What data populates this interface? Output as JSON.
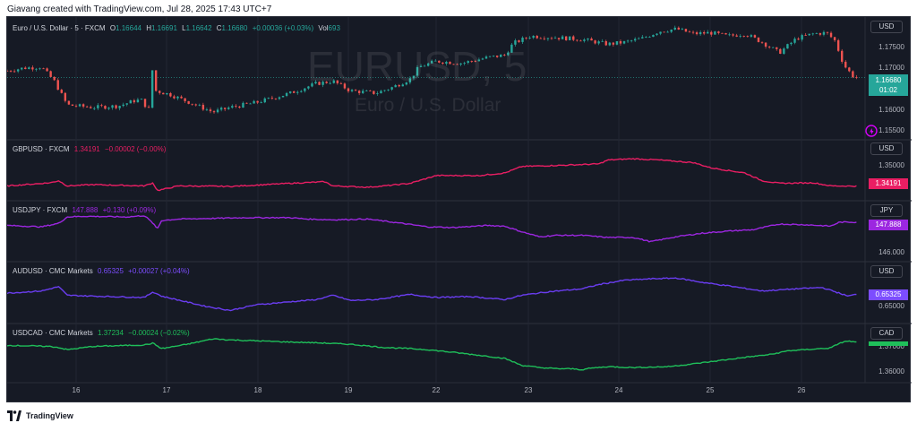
{
  "header": {
    "caption": "Giavang created with TradingView.com, Jul 28, 2025 17:43 UTC+7"
  },
  "footer": {
    "brand": "TradingView"
  },
  "main_pane": {
    "symbol": "Euro / U.S. Dollar · 5 · FXCM",
    "O_label": "O",
    "O": "1.16644",
    "H_label": "H",
    "H": "1.16691",
    "L_label": "L",
    "L": "1.16642",
    "C_label": "C",
    "C": "1.16680",
    "change": "+0.00036 (+0.03%)",
    "vol_label": "Vol",
    "vol": "693",
    "watermark": "EURUSD, 5",
    "watermark_sub": "Euro / U.S. Dollar",
    "currency": "USD",
    "last_price": "1.16680",
    "countdown": "01:02",
    "ticks": [
      "1.17500",
      "1.17000",
      "1.16500",
      "1.16000",
      "1.15500"
    ]
  },
  "sub_panes": [
    {
      "symbol": "GBPUSD · FXCM",
      "last": "1.34191",
      "change": "−0.00002 (−0.00%)",
      "currency": "USD",
      "color": "#e91e63",
      "ticks": [
        "1.35000",
        "1.34191"
      ]
    },
    {
      "symbol": "USDJPY · FXCM",
      "last": "147.888",
      "change": "+0.130 (+0.09%)",
      "currency": "JPY",
      "color": "#9c27e0",
      "ticks": [
        "147.888",
        "146.000"
      ]
    },
    {
      "symbol": "AUDUSD · CMC Markets",
      "last": "0.65325",
      "change": "+0.00027 (+0.04%)",
      "currency": "USD",
      "color": "#6a3df0",
      "ticks": [
        "0.65325",
        "0.65000"
      ]
    },
    {
      "symbol": "USDCAD · CMC Markets",
      "last": "1.37234",
      "change": "−0.00024 (−0.02%)",
      "currency": "CAD",
      "color": "#1fbf5a",
      "ticks": [
        "1.37000",
        "1.36000"
      ]
    }
  ],
  "x_axis": {
    "labels": [
      "16",
      "17",
      "18",
      "19",
      "22",
      "23",
      "24",
      "25",
      "26"
    ]
  },
  "colors": {
    "up": "#26a69a",
    "down": "#ef5350",
    "background": "#161a25",
    "grid": "#232734"
  },
  "chart_data": [
    {
      "type": "candlestick",
      "title": "Euro / U.S. Dollar · 5 · FXCM",
      "series_name": "EURUSD",
      "x_axis_labels": [
        "16",
        "17",
        "18",
        "19",
        "22",
        "23",
        "24",
        "25",
        "26"
      ],
      "ylim": [
        1.155,
        1.178
      ],
      "y_ticks": [
        1.155,
        1.16,
        1.165,
        1.17,
        1.175
      ],
      "close_path": [
        [
          0,
          1.1682
        ],
        [
          2,
          1.1688
        ],
        [
          4,
          1.169
        ],
        [
          5.5,
          1.166
        ],
        [
          7,
          1.161
        ],
        [
          10,
          1.1605
        ],
        [
          13,
          1.1608
        ],
        [
          15,
          1.162
        ],
        [
          16,
          1.162
        ],
        [
          16.3,
          1.158
        ],
        [
          16.6,
          1.1612
        ],
        [
          17.0,
          1.17
        ],
        [
          17.3,
          1.164
        ],
        [
          19,
          1.1632
        ],
        [
          22,
          1.161
        ],
        [
          24,
          1.1595
        ],
        [
          26,
          1.1605
        ],
        [
          29,
          1.1615
        ],
        [
          33,
          1.1635
        ],
        [
          36,
          1.1655
        ],
        [
          38,
          1.166
        ],
        [
          40,
          1.164
        ],
        [
          43,
          1.1635
        ],
        [
          45,
          1.1648
        ],
        [
          47,
          1.1665
        ],
        [
          48,
          1.169
        ],
        [
          50,
          1.1702
        ],
        [
          53,
          1.1698
        ],
        [
          56,
          1.171
        ],
        [
          58,
          1.1715
        ],
        [
          59,
          1.174
        ],
        [
          61,
          1.1755
        ],
        [
          64,
          1.1752
        ],
        [
          67,
          1.1748
        ],
        [
          70,
          1.1738
        ],
        [
          72,
          1.1742
        ],
        [
          74,
          1.175
        ],
        [
          76,
          1.1765
        ],
        [
          78,
          1.177
        ],
        [
          80,
          1.176
        ],
        [
          82,
          1.1762
        ],
        [
          84,
          1.1755
        ],
        [
          86,
          1.176
        ],
        [
          88,
          1.1742
        ],
        [
          90,
          1.172
        ],
        [
          92,
          1.175
        ],
        [
          94,
          1.176
        ],
        [
          95.5,
          1.1762
        ],
        [
          96.5,
          1.1745
        ],
        [
          97.5,
          1.1695
        ],
        [
          98.5,
          1.1672
        ],
        [
          99,
          1.1668
        ]
      ],
      "last": 1.1668
    },
    {
      "type": "line",
      "series_name": "GBPUSD",
      "ylim": [
        1.338,
        1.356
      ],
      "path": [
        [
          0,
          1.342
        ],
        [
          5,
          1.3432
        ],
        [
          6,
          1.344
        ],
        [
          7,
          1.342
        ],
        [
          10,
          1.3425
        ],
        [
          16,
          1.342
        ],
        [
          17,
          1.3432
        ],
        [
          17.5,
          1.3402
        ],
        [
          20,
          1.342
        ],
        [
          26,
          1.3418
        ],
        [
          33,
          1.343
        ],
        [
          37,
          1.3436
        ],
        [
          38,
          1.342
        ],
        [
          42,
          1.3415
        ],
        [
          44,
          1.342
        ],
        [
          47,
          1.343
        ],
        [
          50,
          1.346
        ],
        [
          55,
          1.346
        ],
        [
          58,
          1.347
        ],
        [
          60,
          1.3495
        ],
        [
          65,
          1.35
        ],
        [
          69,
          1.3505
        ],
        [
          70,
          1.352
        ],
        [
          73,
          1.3525
        ],
        [
          76,
          1.352
        ],
        [
          80,
          1.351
        ],
        [
          82,
          1.349
        ],
        [
          86,
          1.347
        ],
        [
          88,
          1.344
        ],
        [
          90,
          1.343
        ],
        [
          94,
          1.3432
        ],
        [
          96,
          1.342
        ],
        [
          99,
          1.34191
        ]
      ],
      "last": 1.34191
    },
    {
      "type": "line",
      "series_name": "USDJPY",
      "ylim": [
        145.4,
        148.7
      ],
      "path": [
        [
          0,
          147.65
        ],
        [
          4,
          147.55
        ],
        [
          6,
          147.8
        ],
        [
          7,
          148.25
        ],
        [
          9,
          148.3
        ],
        [
          14,
          148.25
        ],
        [
          16,
          148.35
        ],
        [
          17,
          147.8
        ],
        [
          17.5,
          147.4
        ],
        [
          18,
          148.0
        ],
        [
          20,
          148.1
        ],
        [
          28,
          148.2
        ],
        [
          33,
          148.2
        ],
        [
          35,
          148.1
        ],
        [
          38,
          148.05
        ],
        [
          42,
          148.1
        ],
        [
          46,
          147.8
        ],
        [
          49,
          147.55
        ],
        [
          52,
          147.5
        ],
        [
          56,
          147.65
        ],
        [
          58,
          147.6
        ],
        [
          60,
          147.2
        ],
        [
          62,
          146.85
        ],
        [
          64,
          146.95
        ],
        [
          67,
          146.95
        ],
        [
          70,
          146.8
        ],
        [
          73,
          146.8
        ],
        [
          75,
          146.5
        ],
        [
          78,
          146.85
        ],
        [
          81,
          147.1
        ],
        [
          84,
          147.25
        ],
        [
          87,
          147.35
        ],
        [
          90,
          147.75
        ],
        [
          93,
          147.7
        ],
        [
          96,
          147.6
        ],
        [
          97,
          147.88
        ],
        [
          99,
          147.888
        ]
      ],
      "last": 147.888
    },
    {
      "type": "line",
      "series_name": "AUDUSD",
      "ylim": [
        0.6475,
        0.6585
      ],
      "path": [
        [
          0,
          0.6535
        ],
        [
          4,
          0.654
        ],
        [
          6,
          0.655
        ],
        [
          7,
          0.653
        ],
        [
          10,
          0.6528
        ],
        [
          16,
          0.6525
        ],
        [
          17,
          0.6538
        ],
        [
          18,
          0.6528
        ],
        [
          23,
          0.6505
        ],
        [
          26,
          0.6495
        ],
        [
          29,
          0.6508
        ],
        [
          33,
          0.6515
        ],
        [
          36,
          0.652
        ],
        [
          38,
          0.653
        ],
        [
          40,
          0.6518
        ],
        [
          43,
          0.652
        ],
        [
          47,
          0.6532
        ],
        [
          50,
          0.6525
        ],
        [
          54,
          0.6527
        ],
        [
          58,
          0.652
        ],
        [
          60,
          0.653
        ],
        [
          63,
          0.6538
        ],
        [
          67,
          0.6545
        ],
        [
          69,
          0.6555
        ],
        [
          72,
          0.6565
        ],
        [
          75,
          0.6568
        ],
        [
          78,
          0.657
        ],
        [
          81,
          0.656
        ],
        [
          84,
          0.6552
        ],
        [
          88,
          0.654
        ],
        [
          92,
          0.6545
        ],
        [
          95,
          0.6548
        ],
        [
          97,
          0.6535
        ],
        [
          98,
          0.6528
        ],
        [
          99,
          0.65325
        ]
      ],
      "last": 0.65325
    },
    {
      "type": "line",
      "series_name": "USDCAD",
      "ylim": [
        1.3555,
        1.3765
      ],
      "path": [
        [
          0,
          1.371
        ],
        [
          5,
          1.3705
        ],
        [
          6,
          1.37
        ],
        [
          7,
          1.369
        ],
        [
          10,
          1.3705
        ],
        [
          16,
          1.3712
        ],
        [
          17,
          1.372
        ],
        [
          18,
          1.3695
        ],
        [
          21,
          1.3715
        ],
        [
          24,
          1.374
        ],
        [
          26,
          1.3735
        ],
        [
          33,
          1.3725
        ],
        [
          36,
          1.3722
        ],
        [
          40,
          1.3715
        ],
        [
          44,
          1.37
        ],
        [
          47,
          1.3695
        ],
        [
          49,
          1.369
        ],
        [
          52,
          1.3678
        ],
        [
          56,
          1.366
        ],
        [
          58,
          1.365
        ],
        [
          60,
          1.3618
        ],
        [
          62,
          1.3608
        ],
        [
          64,
          1.3603
        ],
        [
          66,
          1.3602
        ],
        [
          67,
          1.3598
        ],
        [
          68,
          1.3605
        ],
        [
          70,
          1.3612
        ],
        [
          73,
          1.3608
        ],
        [
          77,
          1.3612
        ],
        [
          80,
          1.3625
        ],
        [
          83,
          1.364
        ],
        [
          86,
          1.3655
        ],
        [
          89,
          1.3668
        ],
        [
          91,
          1.3685
        ],
        [
          93,
          1.369
        ],
        [
          96,
          1.3698
        ],
        [
          97,
          1.372
        ],
        [
          98,
          1.373
        ],
        [
          99,
          1.37234
        ]
      ],
      "last": 1.37234
    }
  ]
}
